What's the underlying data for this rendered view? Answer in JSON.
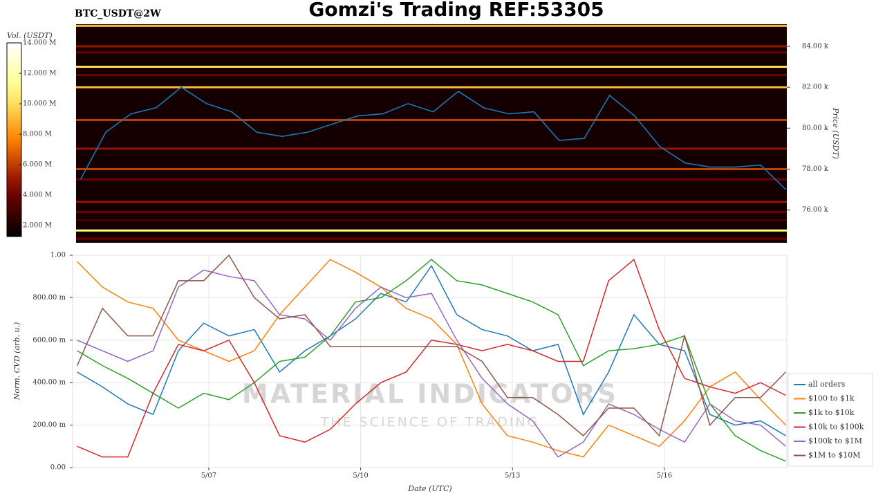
{
  "chart_data": [
    {
      "type": "heatmap",
      "title": "Gomzi's Trading REF:53305",
      "subtitle": "BTC_USDT@2W",
      "colorbar_label": "Vol. (USDT)",
      "y2label": "Price (USDT)",
      "clim": [
        1280000,
        14000000
      ],
      "cticks": [
        {
          "value": 2000000,
          "label": "2.000 M"
        },
        {
          "value": 4000000,
          "label": "4.000 M"
        },
        {
          "value": 6000000,
          "label": "6.000 M"
        },
        {
          "value": 8000000,
          "label": "8.000 M"
        },
        {
          "value": 10000000,
          "label": "10.000 M"
        },
        {
          "value": 12000000,
          "label": "12.000 M"
        },
        {
          "value": 14000000,
          "label": "14.000 M"
        }
      ],
      "levels": {
        "y": [
          85000,
          84000,
          83700,
          83000,
          82600,
          82000,
          80400,
          79000,
          78000,
          77500,
          76400,
          75900,
          75500,
          75000,
          74600
        ],
        "values": [
          9000000,
          5000000,
          4000000,
          10000000,
          4000000,
          9000000,
          6000000,
          5000000,
          6000000,
          4000000,
          5000000,
          4000000,
          3000000,
          11000000,
          4000000
        ]
      },
      "xlim": [
        4.31,
        18.42
      ],
      "x": [
        4.4,
        4.9,
        5.4,
        5.9,
        6.4,
        6.9,
        7.4,
        7.9,
        8.4,
        8.9,
        9.4,
        9.9,
        10.4,
        10.9,
        11.4,
        11.9,
        12.4,
        12.9,
        13.4,
        13.9,
        14.4,
        14.9,
        15.4,
        15.9,
        16.4,
        16.9,
        17.4,
        17.9,
        18.4
      ],
      "series": [
        {
          "color": "#1f77b4",
          "values": [
            77500,
            79800,
            80700,
            81000,
            82000,
            81200,
            80800,
            79800,
            79600,
            79800,
            80200,
            80600,
            80700,
            81200,
            80800,
            81800,
            81000,
            80700,
            80800,
            79400,
            79500,
            81600,
            80600,
            79100,
            78300,
            78100,
            78100,
            78200,
            77000
          ],
          "axis": "y2"
        }
      ],
      "y2lim": [
        74400,
        85080
      ],
      "y2ticks": [
        {
          "value": 76000,
          "label": "76.00 k"
        },
        {
          "value": 78000,
          "label": "78.00 k"
        },
        {
          "value": 80000,
          "label": "80.00 k"
        },
        {
          "value": 82000,
          "label": "82.00 k"
        },
        {
          "value": 84000,
          "label": "84.00 k"
        }
      ]
    },
    {
      "type": "line",
      "xlabel": "Date (UTC)",
      "ylabel": "Norm. CVD (arb. u.)",
      "watermark": "MATERIAL INDICATORS",
      "watermark_sub": "THE SCIENCE OF TRADING",
      "xlim": [
        4.31,
        18.42
      ],
      "xticks": [
        {
          "value": 7,
          "label": "5/07"
        },
        {
          "value": 10,
          "label": "5/10"
        },
        {
          "value": 13,
          "label": "5/13"
        },
        {
          "value": 16,
          "label": "5/16"
        }
      ],
      "ylim": [
        0,
        1
      ],
      "yticks": [
        {
          "value": 0,
          "label": "0.00"
        },
        {
          "value": 0.2,
          "label": "200.00 m"
        },
        {
          "value": 0.4,
          "label": "400.00 m"
        },
        {
          "value": 0.6,
          "label": "600.00 m"
        },
        {
          "value": 0.8,
          "label": "800.00 m"
        },
        {
          "value": 1,
          "label": "1.00"
        }
      ],
      "grid": true,
      "x": [
        4.4,
        4.9,
        5.4,
        5.9,
        6.4,
        6.9,
        7.4,
        7.9,
        8.4,
        8.9,
        9.4,
        9.9,
        10.4,
        10.9,
        11.4,
        11.9,
        12.4,
        12.9,
        13.4,
        13.9,
        14.4,
        14.9,
        15.4,
        15.9,
        16.4,
        16.9,
        17.4,
        17.9,
        18.4
      ],
      "series": [
        {
          "name": "all orders",
          "color": "#1f77b4",
          "values": [
            0.45,
            0.38,
            0.3,
            0.25,
            0.55,
            0.68,
            0.62,
            0.65,
            0.45,
            0.55,
            0.62,
            0.7,
            0.82,
            0.78,
            0.95,
            0.72,
            0.65,
            0.62,
            0.55,
            0.58,
            0.25,
            0.45,
            0.72,
            0.58,
            0.55,
            0.25,
            0.2,
            0.22,
            0.15
          ]
        },
        {
          "name": "$100 to $1k",
          "color": "#ff7f0e",
          "values": [
            0.97,
            0.85,
            0.78,
            0.75,
            0.6,
            0.55,
            0.5,
            0.55,
            0.72,
            0.85,
            0.98,
            0.92,
            0.85,
            0.75,
            0.7,
            0.58,
            0.3,
            0.15,
            0.12,
            0.08,
            0.05,
            0.2,
            0.15,
            0.1,
            0.22,
            0.38,
            0.45,
            0.32,
            0.2
          ]
        },
        {
          "name": "$1k to $10k",
          "color": "#2ca02c",
          "values": [
            0.55,
            0.48,
            0.42,
            0.35,
            0.28,
            0.35,
            0.32,
            0.4,
            0.5,
            0.52,
            0.62,
            0.78,
            0.8,
            0.88,
            0.98,
            0.88,
            0.86,
            0.82,
            0.78,
            0.72,
            0.48,
            0.55,
            0.56,
            0.58,
            0.62,
            0.3,
            0.15,
            0.08,
            0.03
          ]
        },
        {
          "name": "$10k to $100k",
          "color": "#d62728",
          "values": [
            0.1,
            0.05,
            0.05,
            0.35,
            0.58,
            0.55,
            0.6,
            0.4,
            0.15,
            0.12,
            0.18,
            0.3,
            0.4,
            0.45,
            0.6,
            0.58,
            0.55,
            0.58,
            0.55,
            0.5,
            0.5,
            0.88,
            0.98,
            0.65,
            0.42,
            0.38,
            0.35,
            0.4,
            0.34
          ]
        },
        {
          "name": "$100k to $1M",
          "color": "#9467bd",
          "values": [
            0.6,
            0.55,
            0.5,
            0.55,
            0.85,
            0.93,
            0.9,
            0.88,
            0.72,
            0.7,
            0.6,
            0.75,
            0.85,
            0.8,
            0.82,
            0.6,
            0.42,
            0.3,
            0.22,
            0.05,
            0.12,
            0.3,
            0.25,
            0.18,
            0.12,
            0.3,
            0.22,
            0.2,
            0.1
          ]
        },
        {
          "name": "$1M to $10M",
          "color": "#8c564b",
          "values": [
            0.48,
            0.75,
            0.62,
            0.62,
            0.88,
            0.88,
            1.0,
            0.8,
            0.7,
            0.72,
            0.57,
            0.57,
            0.57,
            0.57,
            0.57,
            0.57,
            0.5,
            0.33,
            0.33,
            0.25,
            0.15,
            0.28,
            0.28,
            0.15,
            0.62,
            0.2,
            0.33,
            0.33,
            0.45
          ]
        }
      ]
    }
  ]
}
